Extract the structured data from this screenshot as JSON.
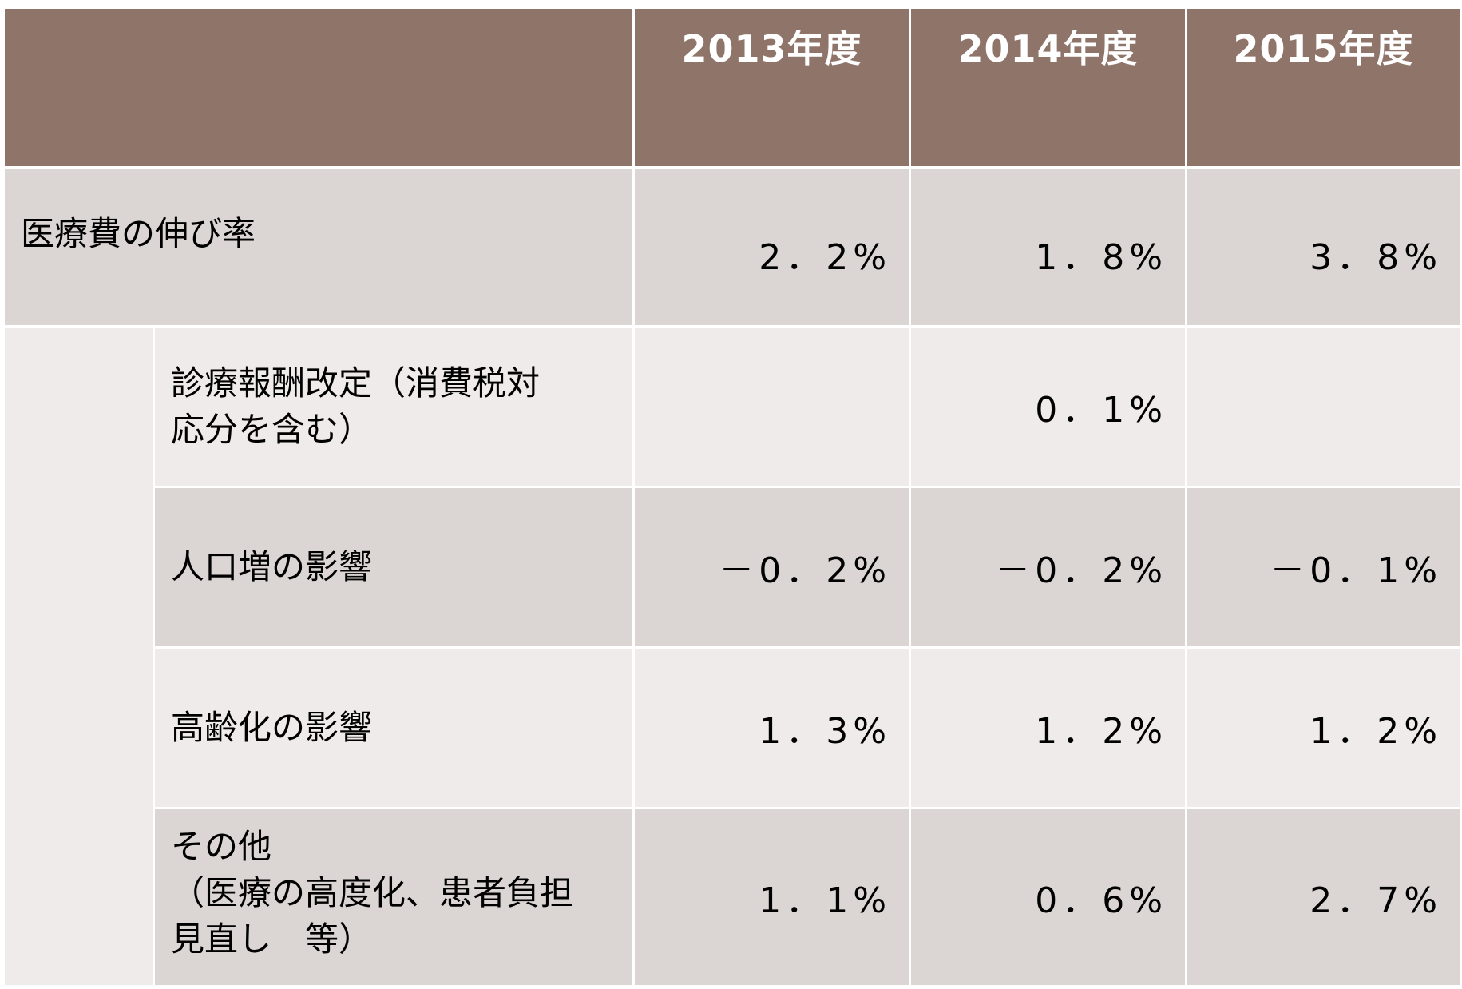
{
  "table": {
    "columns": [
      "",
      "2013年度",
      "2014年度",
      "2015年度"
    ],
    "total": {
      "label": "医療費の伸び率",
      "values": [
        "2．2%",
        "1．8%",
        "3．8%"
      ]
    },
    "breakdown": [
      {
        "label_lines": [
          "診療報酬改定（消費税対",
          "応分を含む）"
        ],
        "values": [
          "",
          "0．1%",
          ""
        ]
      },
      {
        "label_lines": [
          "人口増の影響"
        ],
        "values": [
          "－0．2%",
          "－0．2%",
          "－0．1%"
        ]
      },
      {
        "label_lines": [
          "高齢化の影響"
        ],
        "values": [
          "1．3%",
          "1．2%",
          "1．2%"
        ]
      },
      {
        "label_lines": [
          "その他",
          "（医療の高度化、患者負担",
          "見直し　等）"
        ],
        "values": [
          "1．1%",
          "0．6%",
          "2．7%"
        ]
      }
    ]
  },
  "colors": {
    "header_bg": "#8f7469",
    "row_dark": "#dbd6d3",
    "row_light": "#eeebea"
  }
}
